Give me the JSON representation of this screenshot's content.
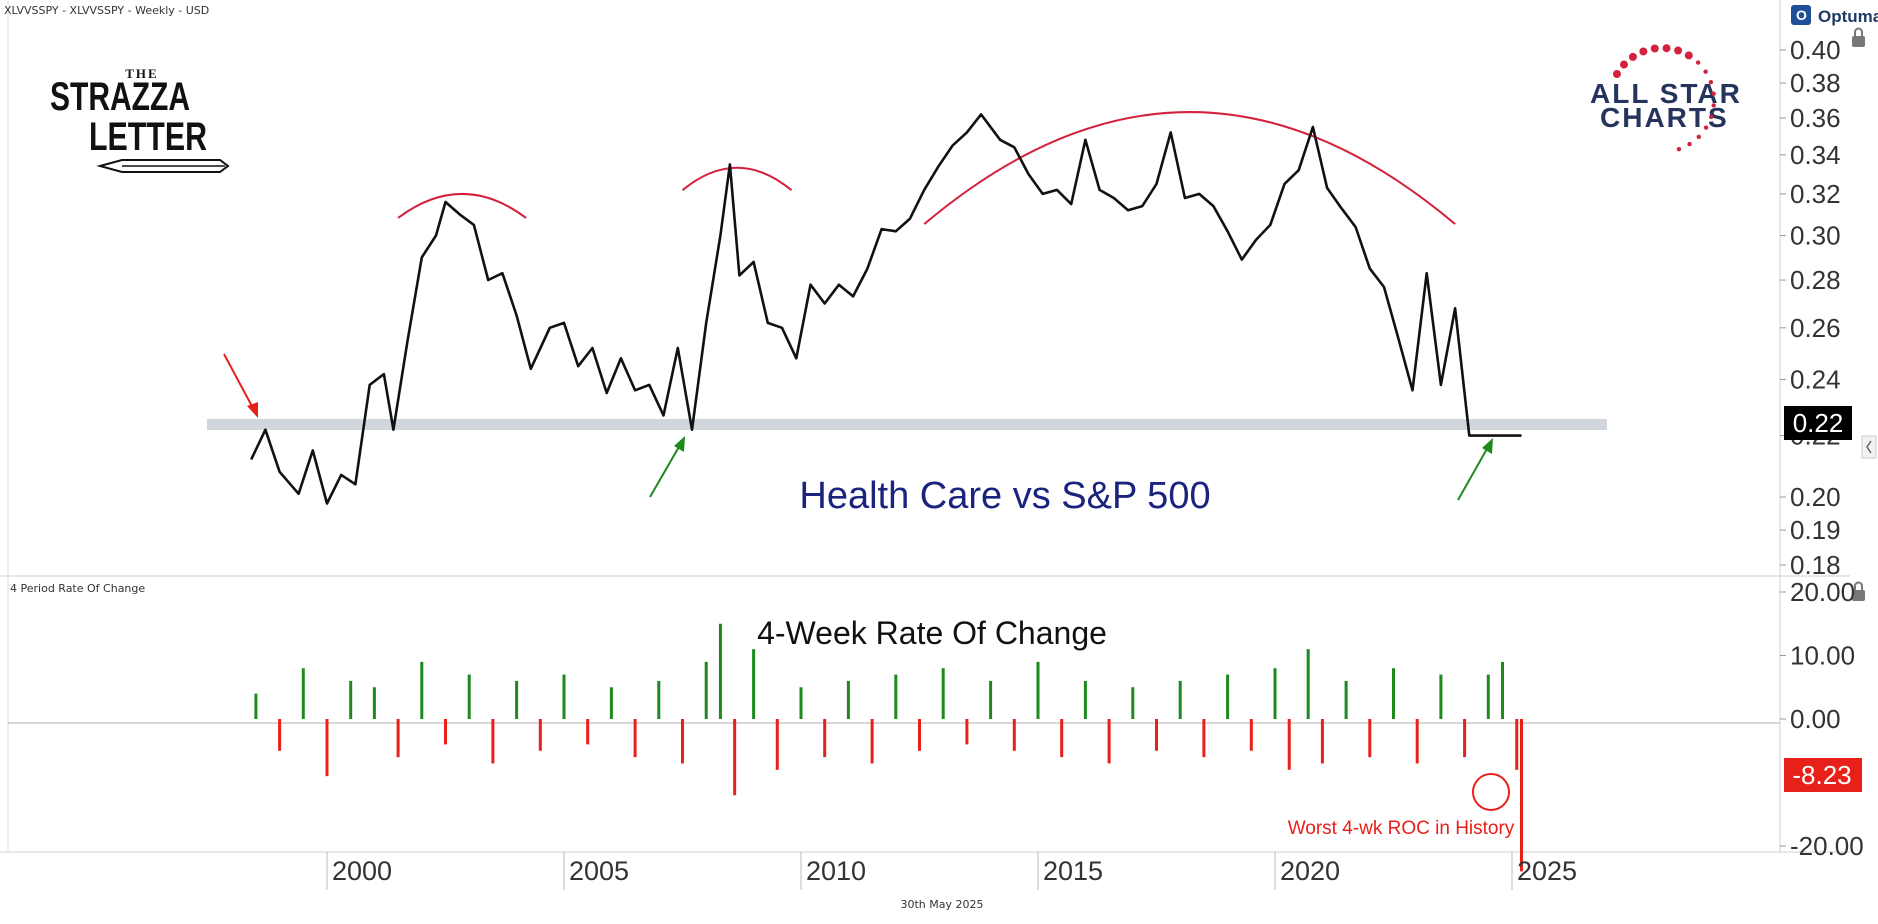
{
  "header": {
    "symbol_line": "XLVVSSPY - XLVVSSPY - Weekly - USD",
    "vendor": "Optuma"
  },
  "logos": {
    "strazza": {
      "line1": "THE",
      "line2": "STRAZZA",
      "line3": "LETTER"
    },
    "allstar": {
      "line1": "ALL STAR",
      "line2": "CHARTS"
    }
  },
  "footer": {
    "date": "30th May 2025"
  },
  "colors": {
    "price": "#111111",
    "up": "#1e8a1e",
    "down": "#e8201a",
    "arc": "#d4213d",
    "title_blue": "#1a237e",
    "support_band": "#c9ced6"
  },
  "chart_data": [
    {
      "type": "line",
      "title": "Health Care vs S&P 500",
      "series": [
        {
          "x": [
            1998.4,
            1998.7,
            1999.0,
            1999.4,
            1999.7,
            2000.0,
            2000.3,
            2000.6,
            2000.9,
            2001.2,
            2001.4,
            2001.7,
            2002.0,
            2002.3,
            2002.5,
            2002.8,
            2003.1,
            2003.4,
            2003.7,
            2004.0,
            2004.3,
            2004.7,
            2005.0,
            2005.3,
            2005.6,
            2005.9,
            2006.2,
            2006.5,
            2006.8,
            2007.1,
            2007.4,
            2007.7,
            2008.0,
            2008.3,
            2008.5,
            2008.7,
            2009.0,
            2009.3,
            2009.6,
            2009.9,
            2010.2,
            2010.5,
            2010.8,
            2011.1,
            2011.4,
            2011.7,
            2012.0,
            2012.3,
            2012.6,
            2012.9,
            2013.2,
            2013.5,
            2013.8,
            2014.2,
            2014.5,
            2014.8,
            2015.1,
            2015.4,
            2015.7,
            2016.0,
            2016.3,
            2016.6,
            2016.9,
            2017.2,
            2017.5,
            2017.8,
            2018.1,
            2018.4,
            2018.7,
            2019.0,
            2019.3,
            2019.6,
            2019.9,
            2020.2,
            2020.5,
            2020.8,
            2021.1,
            2021.4,
            2021.7,
            2022.0,
            2022.3,
            2022.6,
            2022.9,
            2023.2,
            2023.5,
            2023.8,
            2024.1,
            2024.4,
            2024.6,
            2024.8,
            2025.0,
            2025.2
          ],
          "values": [
            0.212,
            0.222,
            0.208,
            0.201,
            0.215,
            0.198,
            0.207,
            0.204,
            0.238,
            0.242,
            0.222,
            0.255,
            0.29,
            0.3,
            0.316,
            0.31,
            0.305,
            0.28,
            0.283,
            0.265,
            0.244,
            0.26,
            0.262,
            0.245,
            0.252,
            0.235,
            0.248,
            0.236,
            0.238,
            0.227,
            0.252,
            0.222,
            0.262,
            0.3,
            0.335,
            0.282,
            0.288,
            0.262,
            0.26,
            0.248,
            0.278,
            0.27,
            0.278,
            0.273,
            0.285,
            0.303,
            0.302,
            0.308,
            0.322,
            0.334,
            0.345,
            0.352,
            0.362,
            0.348,
            0.344,
            0.33,
            0.32,
            0.322,
            0.315,
            0.348,
            0.322,
            0.318,
            0.312,
            0.314,
            0.325,
            0.352,
            0.318,
            0.32,
            0.314,
            0.302,
            0.289,
            0.298,
            0.305,
            0.325,
            0.332,
            0.355,
            0.323,
            0.313,
            0.304,
            0.285,
            0.277,
            0.256,
            0.236,
            0.283,
            0.238,
            0.268,
            0.22,
            0.22,
            0.22,
            0.22,
            0.22,
            0.22
          ]
        }
      ],
      "y_ticks": [
        "0.40",
        "0.38",
        "0.36",
        "0.34",
        "0.32",
        "0.30",
        "0.28",
        "0.26",
        "0.24",
        "0.22",
        "0.20",
        "0.19",
        "0.18"
      ],
      "y_scale": "log",
      "last_value": "0.22",
      "support_level": 0.222,
      "annotations": [
        "red arrow at 1998 high",
        "green arrow at 2007 low",
        "green arrow at 2025 low",
        "red arcs over 2002, 2008 and 2013-2023 tops"
      ]
    },
    {
      "type": "bar",
      "title": "4-Week Rate Of Change",
      "panel_label": "4 Period Rate Of Change",
      "x": [
        1998.5,
        1999.0,
        1999.5,
        2000.0,
        2000.5,
        2001.0,
        2001.5,
        2002.0,
        2002.5,
        2003.0,
        2003.5,
        2004.0,
        2004.5,
        2005.0,
        2005.5,
        2006.0,
        2006.5,
        2007.0,
        2007.5,
        2008.0,
        2008.3,
        2008.6,
        2009.0,
        2009.5,
        2010.0,
        2010.5,
        2011.0,
        2011.5,
        2012.0,
        2012.5,
        2013.0,
        2013.5,
        2014.0,
        2014.5,
        2015.0,
        2015.5,
        2016.0,
        2016.5,
        2017.0,
        2017.5,
        2018.0,
        2018.5,
        2019.0,
        2019.5,
        2020.0,
        2020.3,
        2020.7,
        2021.0,
        2021.5,
        2022.0,
        2022.5,
        2023.0,
        2023.5,
        2024.0,
        2024.5,
        2024.8,
        2025.1,
        2025.2
      ],
      "values": [
        4,
        -5,
        8,
        -9,
        6,
        5,
        -6,
        9,
        -4,
        7,
        -7,
        6,
        -5,
        7,
        -4,
        5,
        -6,
        6,
        -7,
        9,
        15,
        -12,
        11,
        -8,
        5,
        -6,
        6,
        -7,
        7,
        -5,
        8,
        -4,
        6,
        -5,
        9,
        -6,
        6,
        -7,
        5,
        -5,
        6,
        -6,
        7,
        -5,
        8,
        -8,
        11,
        -7,
        6,
        -6,
        8,
        -7,
        7,
        -6,
        7,
        9,
        -8,
        -24
      ],
      "y_ticks": [
        "20.00",
        "10.00",
        "0.00",
        "-20.00"
      ],
      "last_value": "-8.23",
      "annotation": "Worst 4-wk ROC in History"
    }
  ],
  "x_axis": {
    "ticks": [
      "2000",
      "2005",
      "2010",
      "2015",
      "2020",
      "2025"
    ]
  }
}
